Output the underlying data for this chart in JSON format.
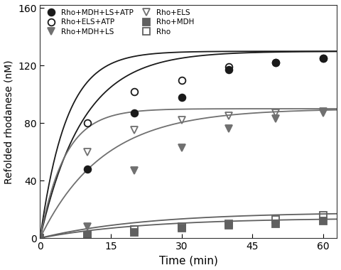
{
  "title": "",
  "xlabel": "Time (min)",
  "ylabel": "Refolded rhodanese (nM)",
  "xlim": [
    0,
    63
  ],
  "ylim": [
    0,
    162
  ],
  "xticks": [
    0,
    15,
    30,
    45,
    60
  ],
  "yticks": [
    0,
    40,
    80,
    120,
    160
  ],
  "series": [
    {
      "label": "Rho+MDH+LS+ATP",
      "marker": "o",
      "fillstyle": "full",
      "color": "#1a1a1a",
      "x": [
        0,
        10,
        20,
        30,
        40,
        50,
        60
      ],
      "y": [
        0,
        48,
        87,
        98,
        117,
        122,
        125
      ],
      "Vmax": 130,
      "k": 0.11
    },
    {
      "label": "Rho+ELS+ATP",
      "marker": "o",
      "fillstyle": "none",
      "color": "#1a1a1a",
      "x": [
        0,
        10,
        20,
        30,
        40,
        50,
        60
      ],
      "y": [
        0,
        80,
        102,
        110,
        119,
        122,
        125
      ],
      "Vmax": 130,
      "k": 0.18
    },
    {
      "label": "Rho+MDH+LS",
      "marker": "v",
      "fillstyle": "full",
      "color": "#707070",
      "x": [
        0,
        10,
        20,
        30,
        40,
        50,
        60
      ],
      "y": [
        0,
        8,
        47,
        63,
        76,
        83,
        87
      ],
      "Vmax": 90,
      "k": 0.075
    },
    {
      "label": "Rho+ELS",
      "marker": "v",
      "fillstyle": "none",
      "color": "#707070",
      "x": [
        0,
        10,
        20,
        30,
        40,
        50,
        60
      ],
      "y": [
        0,
        60,
        75,
        82,
        85,
        87,
        88
      ],
      "Vmax": 90,
      "k": 0.19
    },
    {
      "label": "Rho+MDH",
      "marker": "s",
      "fillstyle": "full",
      "color": "#606060",
      "x": [
        0,
        10,
        20,
        30,
        40,
        50,
        60
      ],
      "y": [
        0,
        2,
        4,
        7,
        9,
        10,
        12
      ],
      "Vmax": 14,
      "k": 0.045
    },
    {
      "label": "Rho",
      "marker": "s",
      "fillstyle": "none",
      "color": "#606060",
      "x": [
        0,
        10,
        20,
        30,
        40,
        50,
        60
      ],
      "y": [
        0,
        2,
        6,
        8,
        10,
        13,
        16
      ],
      "Vmax": 18,
      "k": 0.045
    }
  ],
  "legend_order": [
    0,
    3,
    2,
    5,
    4,
    1
  ],
  "legend_ncol": 2,
  "background_color": "#ffffff"
}
